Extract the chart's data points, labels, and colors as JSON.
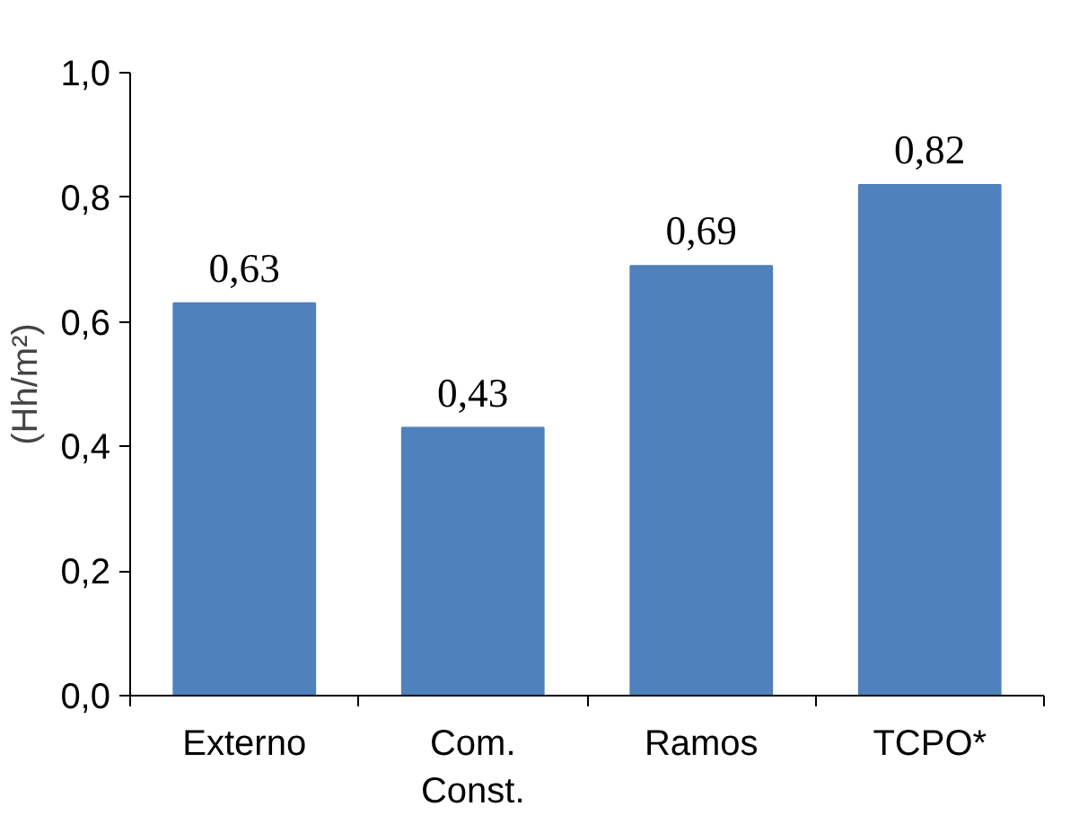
{
  "chart_data": {
    "type": "bar",
    "ylabel": "(Hh/m²)",
    "categories": [
      "Externo",
      "Com.\nConst.",
      "Ramos",
      "TCPO*"
    ],
    "values": [
      0.63,
      0.43,
      0.69,
      0.82
    ],
    "value_labels": [
      "0,63",
      "0,43",
      "0,69",
      "0,82"
    ],
    "color": "#4f81bd",
    "ylim": [
      0,
      1.0
    ],
    "yticks": [
      {
        "value": 0,
        "label": "0,0"
      },
      {
        "value": 0.2,
        "label": "0,2"
      },
      {
        "value": 0.4,
        "label": "0,4"
      },
      {
        "value": 0.6,
        "label": "0,6"
      },
      {
        "value": 0.8,
        "label": "0,8"
      },
      {
        "value": 1.0,
        "label": "1,0"
      }
    ],
    "grid": false
  }
}
